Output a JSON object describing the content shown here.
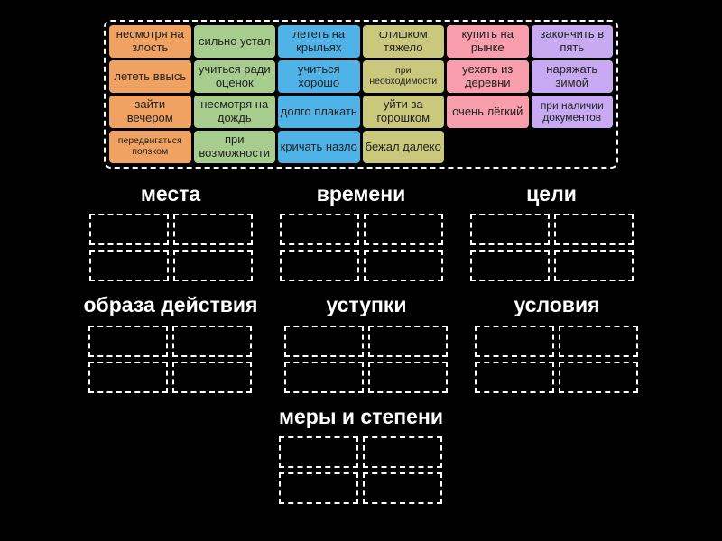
{
  "background_color": "#000000",
  "slot_border_color": "#ffffff",
  "tile_text_color": "#222222",
  "palette": {
    "orange": "#f0a262",
    "green": "#a6cd8d",
    "blue": "#4fb3e8",
    "khaki": "#c9c87d",
    "pink": "#f89dac",
    "purple": "#c7aaf2"
  },
  "tray": {
    "tiles": [
      {
        "label": "несмотря на злость",
        "color": "#f0a262"
      },
      {
        "label": "сильно устал",
        "color": "#a6cd8d"
      },
      {
        "label": "лететь на крыльях",
        "color": "#4fb3e8"
      },
      {
        "label": "слишком тяжело",
        "color": "#c9c87d"
      },
      {
        "label": "купить на рынке",
        "color": "#f89dac"
      },
      {
        "label": "закончить в пять",
        "color": "#c7aaf2"
      },
      {
        "label": "лететь ввысь",
        "color": "#f0a262"
      },
      {
        "label": "учиться ради оценок",
        "color": "#a6cd8d"
      },
      {
        "label": "учиться хорошо",
        "color": "#4fb3e8"
      },
      {
        "label": "при необходимости",
        "color": "#c9c87d"
      },
      {
        "label": "уехать из деревни",
        "color": "#f89dac"
      },
      {
        "label": "наряжать зимой",
        "color": "#c7aaf2"
      },
      {
        "label": "зайти вечером",
        "color": "#f0a262"
      },
      {
        "label": "несмотря на дождь",
        "color": "#a6cd8d"
      },
      {
        "label": "долго плакать",
        "color": "#4fb3e8"
      },
      {
        "label": "уйти за горошком",
        "color": "#c9c87d"
      },
      {
        "label": "очень лёгкий",
        "color": "#f89dac"
      },
      {
        "label": "при наличии документов",
        "color": "#c7aaf2"
      },
      {
        "label": "передвигаться ползком",
        "color": "#f0a262"
      },
      {
        "label": "при возможности",
        "color": "#a6cd8d"
      },
      {
        "label": "кричать назло",
        "color": "#4fb3e8"
      },
      {
        "label": "бежал далеко",
        "color": "#c9c87d"
      }
    ]
  },
  "categories": [
    {
      "name": "места",
      "slot_count": 4
    },
    {
      "name": "времени",
      "slot_count": 4
    },
    {
      "name": "цели",
      "slot_count": 4
    },
    {
      "name": "образа действия",
      "slot_count": 4
    },
    {
      "name": "уступки",
      "slot_count": 4
    },
    {
      "name": "условия",
      "slot_count": 4
    },
    {
      "name": "меры и степени",
      "slot_count": 4
    }
  ]
}
